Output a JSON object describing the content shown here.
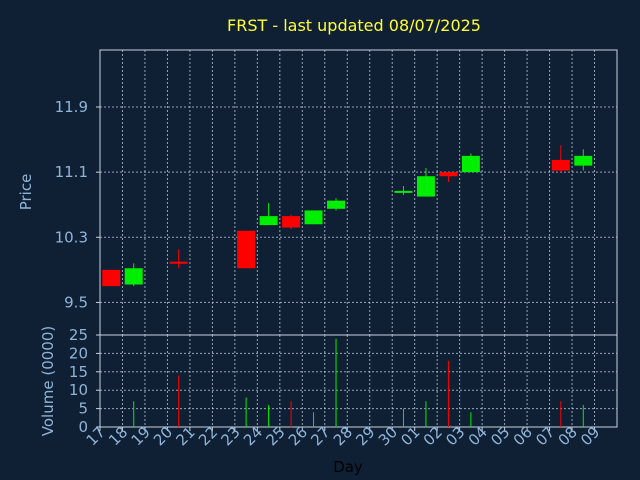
{
  "chart_data": [
    {
      "type": "candlestick",
      "title": "FRST - last updated 08/07/2025",
      "ylabel": "Price",
      "ylim": [
        9.1,
        12.6
      ],
      "yticks": [
        9.5,
        10.3,
        11.1,
        11.9
      ],
      "ytick_labels": [
        "9.5",
        "10.3",
        "11.1",
        "11.9"
      ],
      "categories": [
        "17",
        "18",
        "19",
        "20",
        "21",
        "22",
        "23",
        "24",
        "25",
        "26",
        "27",
        "28",
        "29",
        "30",
        "01",
        "02",
        "03",
        "04",
        "05",
        "06",
        "07",
        "08",
        "09"
      ],
      "colors": {
        "up": "#00ee00",
        "down": "#ff0000",
        "background": "#0f2035",
        "title": "#ffff33",
        "axis_text": "#8fb4d9"
      },
      "candles": [
        {
          "day": "17",
          "open": 9.9,
          "high": 9.9,
          "low": 9.7,
          "close": 9.7
        },
        {
          "day": "18",
          "open": 9.72,
          "high": 9.98,
          "low": 9.7,
          "close": 9.92
        },
        {
          "day": "20",
          "open": 10.0,
          "high": 10.15,
          "low": 9.92,
          "close": 9.98
        },
        {
          "day": "23",
          "open": 10.38,
          "high": 10.38,
          "low": 9.92,
          "close": 9.92
        },
        {
          "day": "24",
          "open": 10.45,
          "high": 10.72,
          "low": 10.45,
          "close": 10.56
        },
        {
          "day": "25",
          "open": 10.56,
          "high": 10.58,
          "low": 10.4,
          "close": 10.42
        },
        {
          "day": "26",
          "open": 10.46,
          "high": 10.63,
          "low": 10.46,
          "close": 10.63
        },
        {
          "day": "27",
          "open": 10.65,
          "high": 10.78,
          "low": 10.63,
          "close": 10.75
        },
        {
          "day": "30",
          "open": 10.85,
          "high": 10.93,
          "low": 10.82,
          "close": 10.87
        },
        {
          "day": "01",
          "open": 10.8,
          "high": 11.15,
          "low": 10.8,
          "close": 11.05
        },
        {
          "day": "02",
          "open": 11.1,
          "high": 11.1,
          "low": 10.98,
          "close": 11.05
        },
        {
          "day": "03",
          "open": 11.1,
          "high": 11.33,
          "low": 11.1,
          "close": 11.3
        },
        {
          "day": "07",
          "open": 11.25,
          "high": 11.43,
          "low": 11.1,
          "close": 11.12
        },
        {
          "day": "08",
          "open": 11.18,
          "high": 11.38,
          "low": 11.12,
          "close": 11.3
        }
      ]
    },
    {
      "type": "bar",
      "ylabel": "Volume (0000)",
      "xlabel": "Day",
      "ylim": [
        0,
        25
      ],
      "yticks": [
        0,
        5,
        10,
        15,
        20,
        25
      ],
      "ytick_labels": [
        "0",
        "5",
        "10",
        "15",
        "20",
        "25"
      ],
      "bars": [
        {
          "day": "18",
          "value": 7,
          "color": "up"
        },
        {
          "day": "20",
          "value": 14,
          "color": "down"
        },
        {
          "day": "23",
          "value": 8,
          "color": "up"
        },
        {
          "day": "24",
          "value": 6,
          "color": "up"
        },
        {
          "day": "25",
          "value": 7,
          "color": "down"
        },
        {
          "day": "26",
          "value": 4,
          "color": "up"
        },
        {
          "day": "27",
          "value": 24,
          "color": "up"
        },
        {
          "day": "30",
          "value": 5,
          "color": "up"
        },
        {
          "day": "01",
          "value": 7,
          "color": "up"
        },
        {
          "day": "02",
          "value": 18,
          "color": "down"
        },
        {
          "day": "03",
          "value": 4,
          "color": "up"
        },
        {
          "day": "07",
          "value": 7,
          "color": "down"
        },
        {
          "day": "08",
          "value": 6,
          "color": "up"
        }
      ]
    }
  ]
}
